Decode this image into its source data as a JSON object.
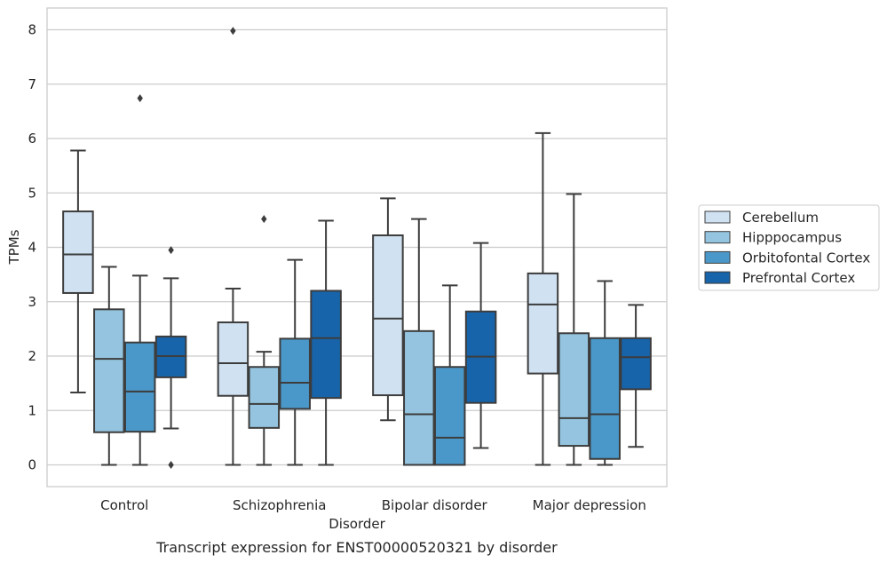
{
  "chart_data": {
    "type": "box",
    "caption": "Transcript expression for ENST00000520321 by disorder",
    "xlabel": "Disorder",
    "ylabel": "TPMs",
    "ylim": [
      -0.4,
      8.4
    ],
    "yticks": [
      0,
      1,
      2,
      3,
      4,
      5,
      6,
      7,
      8
    ],
    "grid": "horizontal",
    "legend_position": "right",
    "categories": [
      "Control",
      "Schizophrenia",
      "Bipolar disorder",
      "Major depression"
    ],
    "series": [
      {
        "name": "Cerebellum",
        "color": "#d0e1f2",
        "boxes": [
          {
            "whisker_low": 1.33,
            "q1": 3.16,
            "median": 3.87,
            "q3": 4.66,
            "whisker_high": 5.78,
            "outliers": []
          },
          {
            "whisker_low": 0.0,
            "q1": 1.27,
            "median": 1.87,
            "q3": 2.62,
            "whisker_high": 3.24,
            "outliers": [
              7.98
            ]
          },
          {
            "whisker_low": 0.82,
            "q1": 1.28,
            "median": 2.69,
            "q3": 4.22,
            "whisker_high": 4.9,
            "outliers": []
          },
          {
            "whisker_low": 0.0,
            "q1": 1.68,
            "median": 2.95,
            "q3": 3.52,
            "whisker_high": 6.1,
            "outliers": []
          }
        ]
      },
      {
        "name": "Hipppocampus",
        "color": "#94c4df",
        "boxes": [
          {
            "whisker_low": 0.0,
            "q1": 0.6,
            "median": 1.95,
            "q3": 2.86,
            "whisker_high": 3.64,
            "outliers": []
          },
          {
            "whisker_low": 0.0,
            "q1": 0.68,
            "median": 1.12,
            "q3": 1.8,
            "whisker_high": 2.08,
            "outliers": [
              4.52
            ]
          },
          {
            "whisker_low": 0.0,
            "q1": 0.0,
            "median": 0.93,
            "q3": 2.46,
            "whisker_high": 4.52,
            "outliers": []
          },
          {
            "whisker_low": 0.0,
            "q1": 0.35,
            "median": 0.86,
            "q3": 2.42,
            "whisker_high": 4.98,
            "outliers": []
          }
        ]
      },
      {
        "name": "Orbitofontal Cortex",
        "color": "#4a98c9",
        "boxes": [
          {
            "whisker_low": 0.0,
            "q1": 0.61,
            "median": 1.35,
            "q3": 2.25,
            "whisker_high": 3.48,
            "outliers": [
              6.74
            ]
          },
          {
            "whisker_low": 0.0,
            "q1": 1.03,
            "median": 1.51,
            "q3": 2.32,
            "whisker_high": 3.77,
            "outliers": []
          },
          {
            "whisker_low": 0.0,
            "q1": 0.0,
            "median": 0.5,
            "q3": 1.8,
            "whisker_high": 3.3,
            "outliers": []
          },
          {
            "whisker_low": 0.0,
            "q1": 0.11,
            "median": 0.93,
            "q3": 2.33,
            "whisker_high": 3.38,
            "outliers": []
          }
        ]
      },
      {
        "name": "Prefrontal Cortex",
        "color": "#1764ab",
        "boxes": [
          {
            "whisker_low": 0.67,
            "q1": 1.61,
            "median": 2.0,
            "q3": 2.36,
            "whisker_high": 3.43,
            "outliers": [
              3.95,
              0.0
            ]
          },
          {
            "whisker_low": 0.0,
            "q1": 1.23,
            "median": 2.33,
            "q3": 3.2,
            "whisker_high": 4.49,
            "outliers": []
          },
          {
            "whisker_low": 0.31,
            "q1": 1.14,
            "median": 1.99,
            "q3": 2.82,
            "whisker_high": 4.08,
            "outliers": []
          },
          {
            "whisker_low": 0.33,
            "q1": 1.39,
            "median": 1.98,
            "q3": 2.33,
            "whisker_high": 2.94,
            "outliers": []
          }
        ]
      }
    ]
  }
}
